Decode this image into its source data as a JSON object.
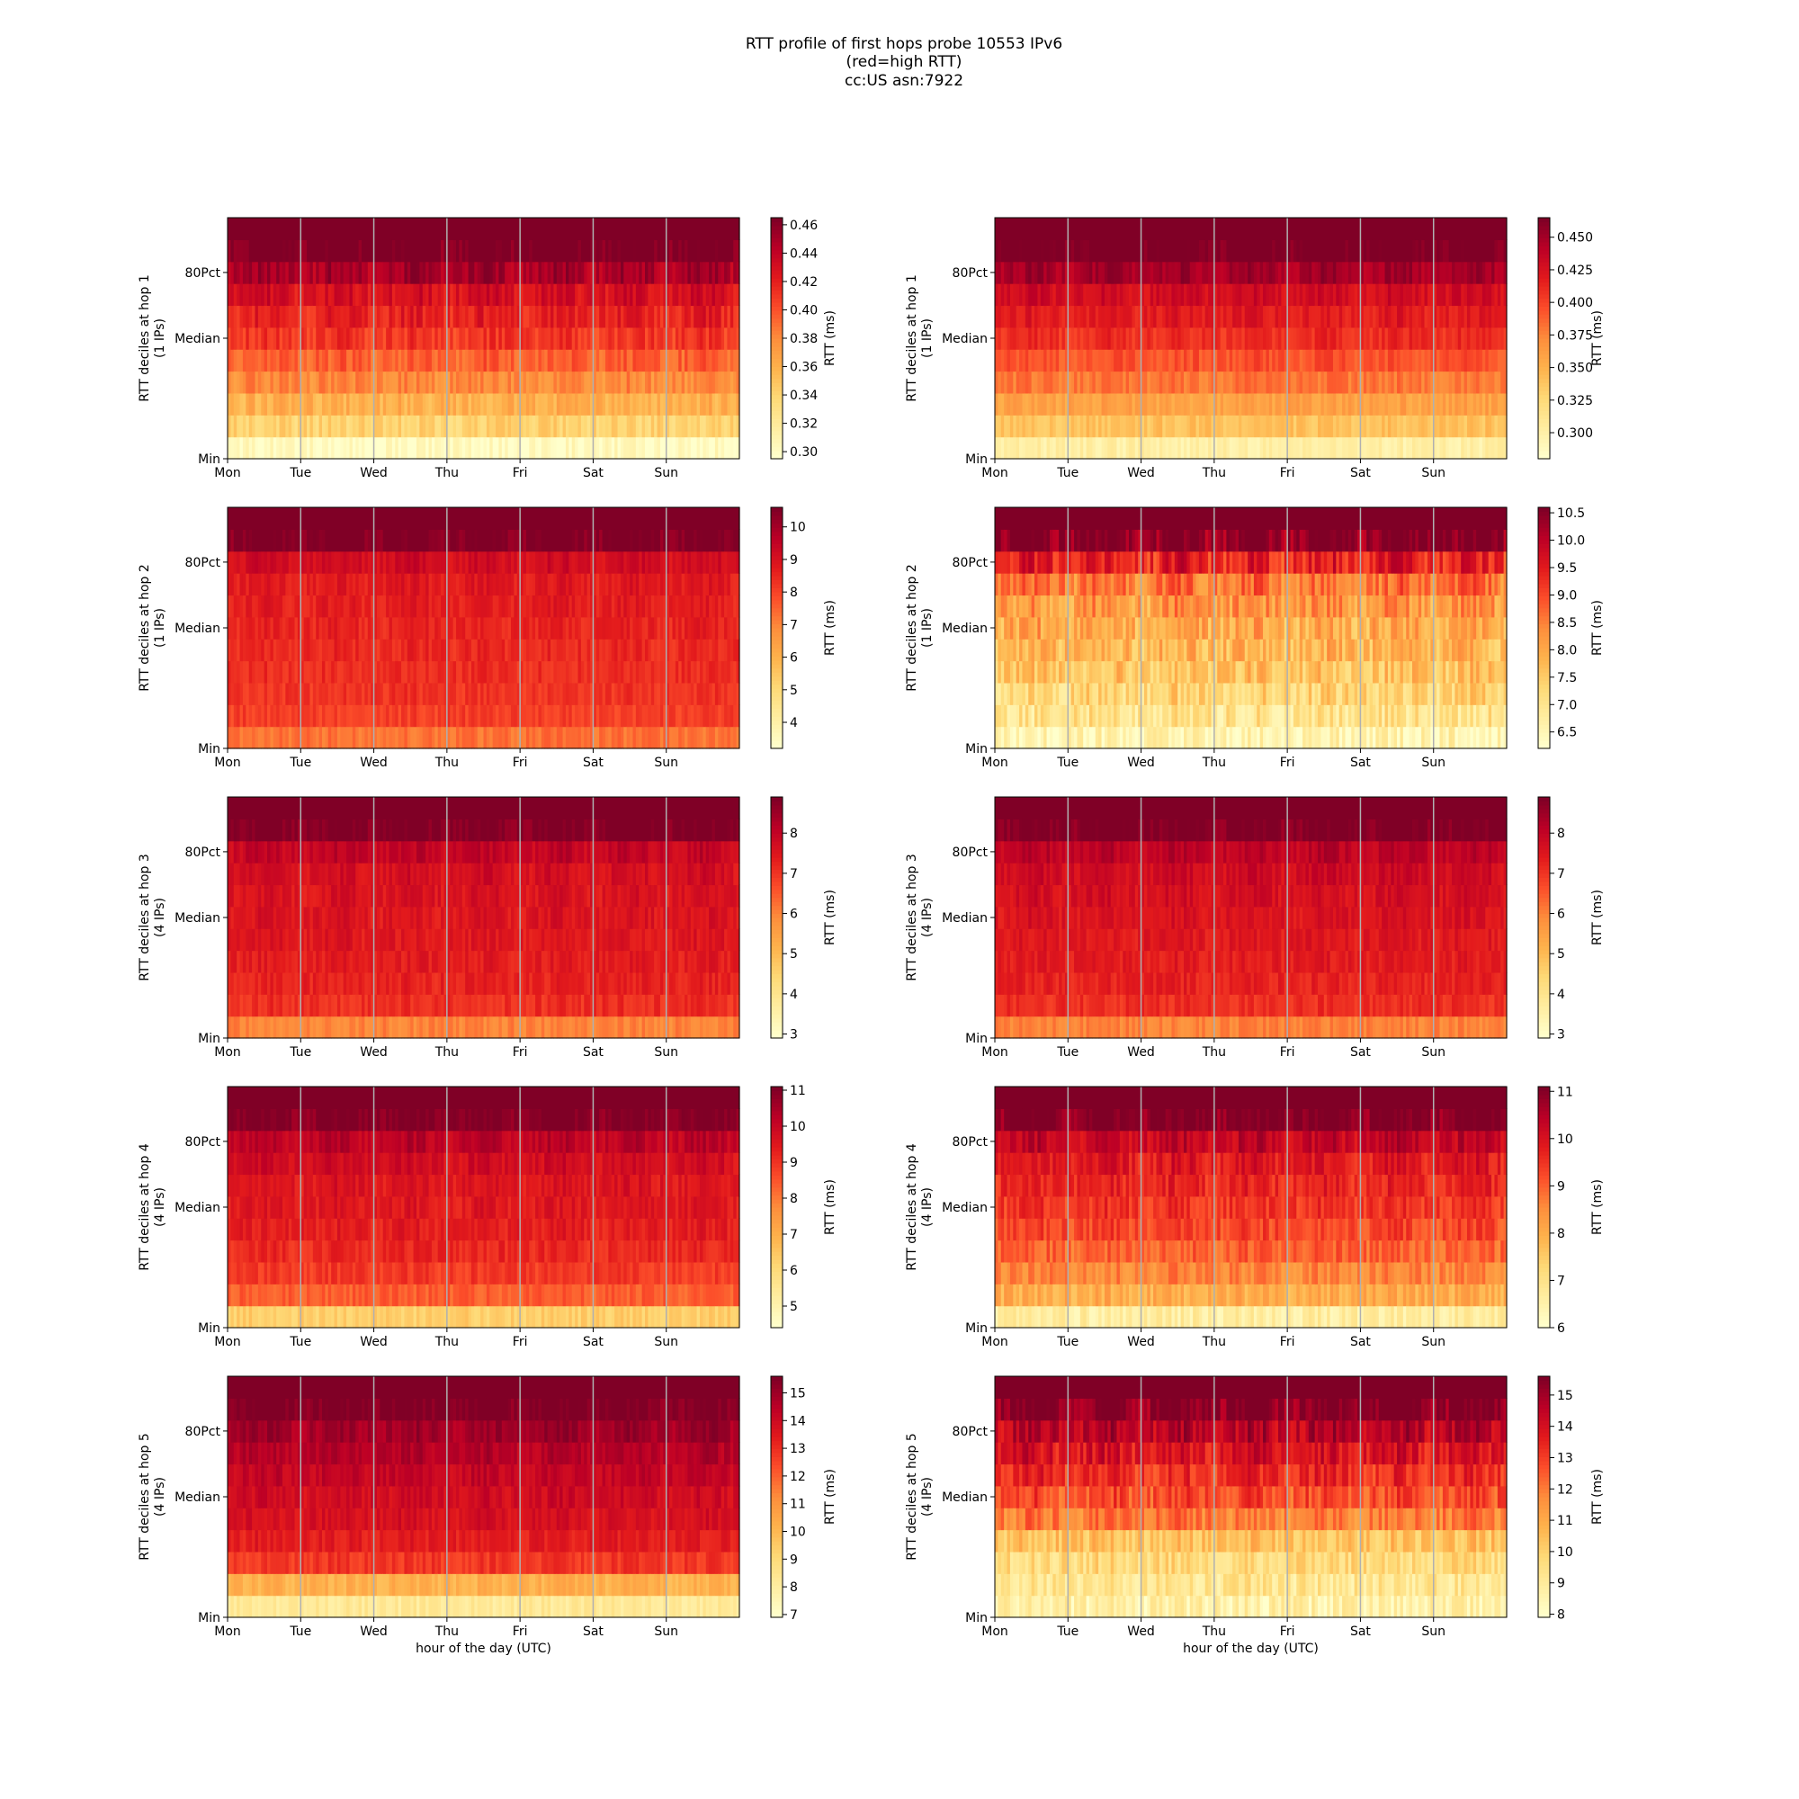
{
  "title": {
    "lines": [
      "RTT profile of first hops probe 10553 IPv6",
      "(red=high RTT)",
      "cc:US asn:7922"
    ]
  },
  "chart_data": [
    {
      "type": "heatmap",
      "row": 0,
      "col": 0,
      "ylabel": [
        "RTT deciles at hop 1",
        "(1 IPs)"
      ],
      "colorbar_label": "RTT (ms)",
      "colorbar_ticks": [
        "0.30",
        "0.32",
        "0.34",
        "0.36",
        "0.38",
        "0.40",
        "0.42",
        "0.44",
        "0.46"
      ],
      "vmin": 0.295,
      "vmax": 0.465,
      "decile_levels": [
        0.3,
        0.34,
        0.36,
        0.38,
        0.395,
        0.41,
        0.42,
        0.43,
        0.45,
        0.47
      ],
      "noise": 0.012,
      "x_ticks": [
        "Mon",
        "Tue",
        "Wed",
        "Thu",
        "Fri",
        "Sat",
        "Sun"
      ],
      "y_ticks": [
        "Min",
        "Median",
        "80Pct"
      ],
      "xlabel": ""
    },
    {
      "type": "heatmap",
      "row": 0,
      "col": 1,
      "ylabel": [
        "RTT deciles at hop 1",
        "(1 IPs)"
      ],
      "colorbar_label": "RTT (ms)",
      "colorbar_ticks": [
        "0.300",
        "0.325",
        "0.350",
        "0.375",
        "0.400",
        "0.425",
        "0.450"
      ],
      "vmin": 0.28,
      "vmax": 0.465,
      "decile_levels": [
        0.3,
        0.34,
        0.36,
        0.38,
        0.395,
        0.41,
        0.42,
        0.43,
        0.45,
        0.47
      ],
      "noise": 0.01,
      "x_ticks": [
        "Mon",
        "Tue",
        "Wed",
        "Thu",
        "Fri",
        "Sat",
        "Sun"
      ],
      "y_ticks": [
        "Min",
        "Median",
        "80Pct"
      ],
      "xlabel": ""
    },
    {
      "type": "heatmap",
      "row": 1,
      "col": 0,
      "ylabel": [
        "RTT deciles at hop 2",
        "(1 IPs)"
      ],
      "colorbar_label": "RTT (ms)",
      "colorbar_ticks": [
        "4",
        "5",
        "6",
        "7",
        "8",
        "9",
        "10"
      ],
      "vmin": 3.2,
      "vmax": 10.6,
      "decile_levels": [
        7.3,
        8.1,
        8.3,
        8.4,
        8.5,
        8.6,
        8.7,
        8.8,
        9.2,
        10.6
      ],
      "noise": 0.35,
      "x_ticks": [
        "Mon",
        "Tue",
        "Wed",
        "Thu",
        "Fri",
        "Sat",
        "Sun"
      ],
      "y_ticks": [
        "Min",
        "Median",
        "80Pct"
      ],
      "xlabel": ""
    },
    {
      "type": "heatmap",
      "row": 1,
      "col": 1,
      "ylabel": [
        "RTT deciles at hop 2",
        "(1 IPs)"
      ],
      "colorbar_label": "RTT (ms)",
      "colorbar_ticks": [
        "6.5",
        "7.0",
        "7.5",
        "8.0",
        "8.5",
        "9.0",
        "9.5",
        "10.0",
        "10.5"
      ],
      "vmin": 6.2,
      "vmax": 10.6,
      "decile_levels": [
        6.5,
        7.0,
        7.3,
        7.6,
        7.8,
        8.0,
        8.2,
        8.6,
        9.4,
        10.6
      ],
      "noise": 0.55,
      "x_ticks": [
        "Mon",
        "Tue",
        "Wed",
        "Thu",
        "Fri",
        "Sat",
        "Sun"
      ],
      "y_ticks": [
        "Min",
        "Median",
        "80Pct"
      ],
      "xlabel": ""
    },
    {
      "type": "heatmap",
      "row": 2,
      "col": 0,
      "ylabel": [
        "RTT deciles at hop 3",
        "(4 IPs)"
      ],
      "colorbar_label": "RTT (ms)",
      "colorbar_ticks": [
        "3",
        "4",
        "5",
        "6",
        "7",
        "8"
      ],
      "vmin": 2.9,
      "vmax": 8.9,
      "decile_levels": [
        6.0,
        7.1,
        7.3,
        7.4,
        7.5,
        7.55,
        7.6,
        7.7,
        8.0,
        8.9
      ],
      "noise": 0.3,
      "x_ticks": [
        "Mon",
        "Tue",
        "Wed",
        "Thu",
        "Fri",
        "Sat",
        "Sun"
      ],
      "y_ticks": [
        "Min",
        "Median",
        "80Pct"
      ],
      "xlabel": ""
    },
    {
      "type": "heatmap",
      "row": 2,
      "col": 1,
      "ylabel": [
        "RTT deciles at hop 3",
        "(4 IPs)"
      ],
      "colorbar_label": "RTT (ms)",
      "colorbar_ticks": [
        "3",
        "4",
        "5",
        "6",
        "7",
        "8"
      ],
      "vmin": 2.9,
      "vmax": 8.9,
      "decile_levels": [
        6.0,
        7.1,
        7.3,
        7.4,
        7.5,
        7.6,
        7.7,
        7.8,
        8.1,
        8.9
      ],
      "noise": 0.3,
      "x_ticks": [
        "Mon",
        "Tue",
        "Wed",
        "Thu",
        "Fri",
        "Sat",
        "Sun"
      ],
      "y_ticks": [
        "Min",
        "Median",
        "80Pct"
      ],
      "xlabel": ""
    },
    {
      "type": "heatmap",
      "row": 3,
      "col": 0,
      "ylabel": [
        "RTT deciles at hop 4",
        "(4 IPs)"
      ],
      "colorbar_label": "RTT (ms)",
      "colorbar_ticks": [
        "5",
        "6",
        "7",
        "8",
        "9",
        "10",
        "11"
      ],
      "vmin": 4.4,
      "vmax": 11.1,
      "decile_levels": [
        6.3,
        8.4,
        8.9,
        9.2,
        9.4,
        9.5,
        9.6,
        9.8,
        10.2,
        11.1
      ],
      "noise": 0.35,
      "x_ticks": [
        "Mon",
        "Tue",
        "Wed",
        "Thu",
        "Fri",
        "Sat",
        "Sun"
      ],
      "y_ticks": [
        "Min",
        "Median",
        "80Pct"
      ],
      "xlabel": ""
    },
    {
      "type": "heatmap",
      "row": 3,
      "col": 1,
      "ylabel": [
        "RTT deciles at hop 4",
        "(4 IPs)"
      ],
      "colorbar_label": "RTT (ms)",
      "colorbar_ticks": [
        "6",
        "7",
        "8",
        "9",
        "10",
        "11"
      ],
      "vmin": 6.0,
      "vmax": 11.1,
      "decile_levels": [
        6.6,
        8.0,
        8.6,
        9.0,
        9.3,
        9.5,
        9.7,
        9.9,
        10.3,
        11.1
      ],
      "noise": 0.4,
      "x_ticks": [
        "Mon",
        "Tue",
        "Wed",
        "Thu",
        "Fri",
        "Sat",
        "Sun"
      ],
      "y_ticks": [
        "Min",
        "Median",
        "80Pct"
      ],
      "xlabel": ""
    },
    {
      "type": "heatmap",
      "row": 4,
      "col": 0,
      "ylabel": [
        "RTT deciles at hop 5",
        "(4 IPs)"
      ],
      "colorbar_label": "RTT (ms)",
      "colorbar_ticks": [
        "7",
        "8",
        "9",
        "10",
        "11",
        "12",
        "13",
        "14",
        "15"
      ],
      "vmin": 6.9,
      "vmax": 15.6,
      "decile_levels": [
        8.2,
        10.2,
        12.8,
        13.4,
        13.8,
        14.0,
        14.3,
        14.6,
        15.0,
        15.6
      ],
      "noise": 0.45,
      "x_ticks": [
        "Mon",
        "Tue",
        "Wed",
        "Thu",
        "Fri",
        "Sat",
        "Sun"
      ],
      "y_ticks": [
        "Min",
        "Median",
        "80Pct"
      ],
      "xlabel": "hour of the day (UTC)"
    },
    {
      "type": "heatmap",
      "row": 4,
      "col": 1,
      "ylabel": [
        "RTT deciles at hop 5",
        "(4 IPs)"
      ],
      "colorbar_label": "RTT (ms)",
      "colorbar_ticks": [
        "8",
        "9",
        "10",
        "11",
        "12",
        "13",
        "14",
        "15"
      ],
      "vmin": 7.9,
      "vmax": 15.6,
      "decile_levels": [
        8.6,
        9.2,
        9.7,
        10.4,
        12.0,
        12.8,
        13.3,
        13.9,
        14.6,
        15.6
      ],
      "noise": 0.8,
      "x_ticks": [
        "Mon",
        "Tue",
        "Wed",
        "Thu",
        "Fri",
        "Sat",
        "Sun"
      ],
      "y_ticks": [
        "Min",
        "Median",
        "80Pct"
      ],
      "xlabel": "hour of the day (UTC)"
    }
  ]
}
